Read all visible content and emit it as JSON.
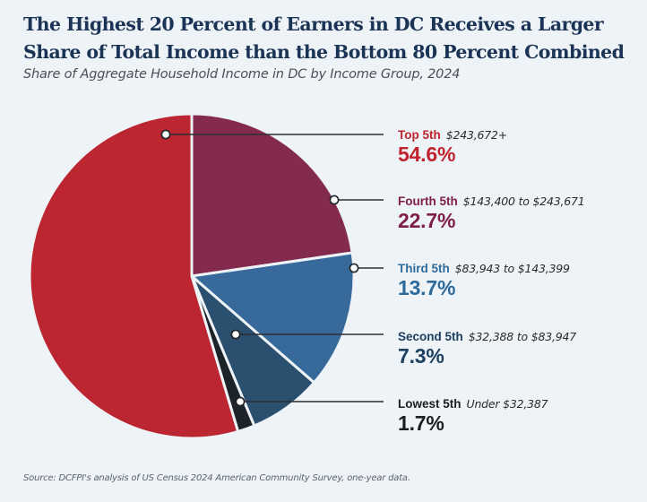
{
  "chart_data": {
    "type": "pie",
    "title": "The Highest 20 Percent of Earners in DC Receives a Larger Share of Total Income than the Bottom 80 Percent Combined",
    "subtitle": "Share of Aggregate Household Income in DC by Income Group, 2024",
    "unit": "percent",
    "start": "12 o'clock, clockwise",
    "slices": [
      {
        "label": "Fourth 5th",
        "range": "$143,400 to $243,671",
        "value": 22.7,
        "display": "22.7%",
        "color": "#832a4e",
        "text_color": "#7e1d47"
      },
      {
        "label": "Third 5th",
        "range": "$83,943 to $143,399",
        "value": 13.7,
        "display": "13.7%",
        "color": "#376a9a",
        "text_color": "#2d6a9c"
      },
      {
        "label": "Second 5th",
        "range": "$32,388 to $83,947",
        "value": 7.3,
        "display": "7.3%",
        "color": "#2b4f6e",
        "text_color": "#1d3f60"
      },
      {
        "label": "Lowest 5th",
        "range": "Under $32,387",
        "value": 1.7,
        "display": "1.7%",
        "color": "#1c2329",
        "text_color": "#1b1f24"
      },
      {
        "label": "Top 5th",
        "range": "$243,672+",
        "value": 54.6,
        "display": "54.6%",
        "color": "#bb2630",
        "text_color": "#c0232e"
      }
    ],
    "legend_order": [
      "Top 5th",
      "Fourth 5th",
      "Third 5th",
      "Second 5th",
      "Lowest 5th"
    ],
    "legend": "right, with leader lines"
  },
  "source": "Source: DCFPI's analysis of US Census 2024 American Community Survey, one-year data."
}
